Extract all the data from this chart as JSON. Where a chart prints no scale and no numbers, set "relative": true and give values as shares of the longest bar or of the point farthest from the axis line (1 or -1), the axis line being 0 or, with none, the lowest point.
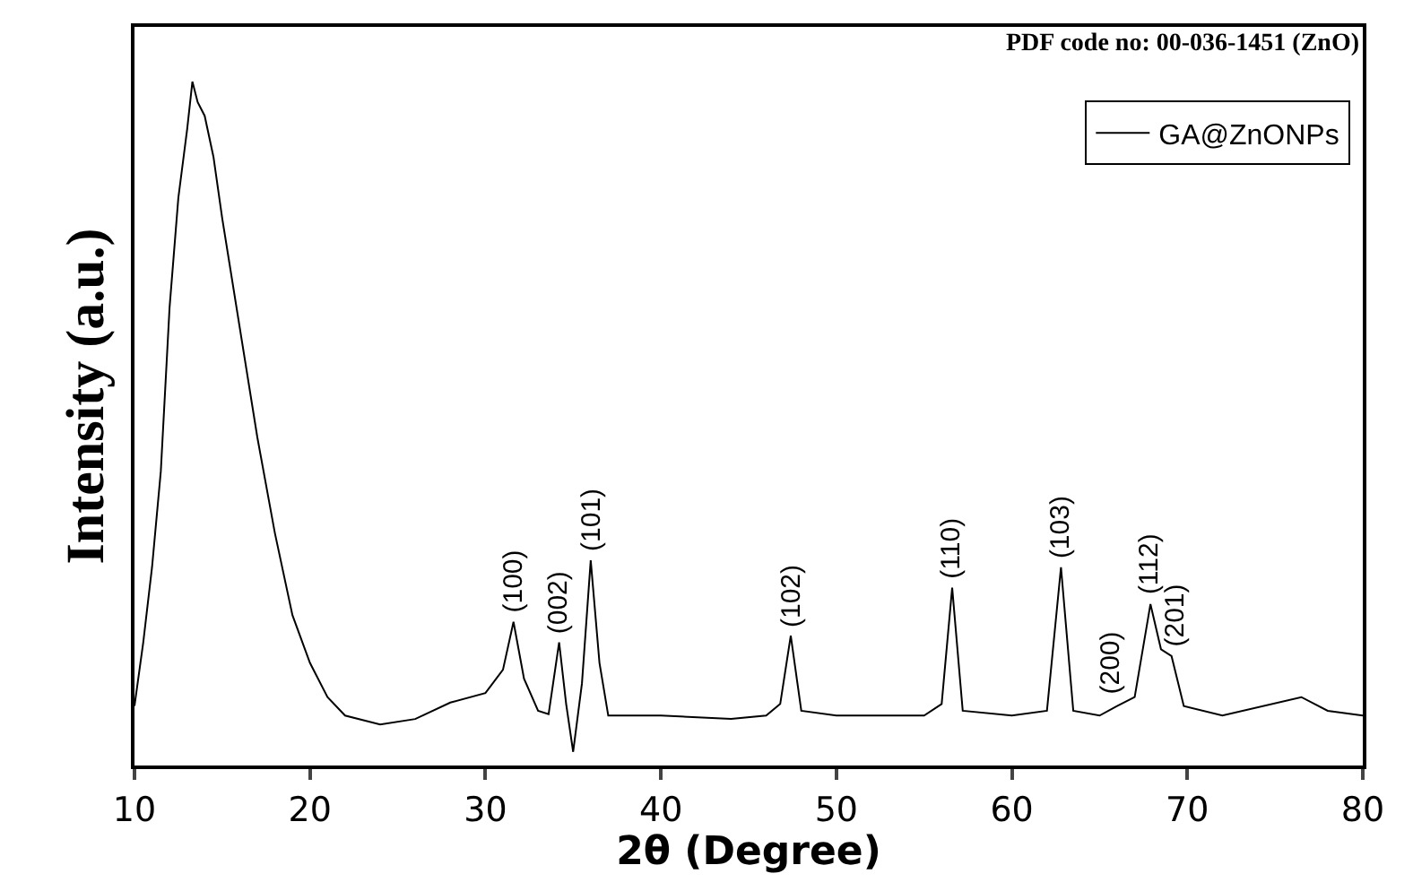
{
  "chart_data": {
    "type": "line",
    "relative": true,
    "xlabel": "2θ (Degree)",
    "ylabel": "Intensity (a.u.)",
    "xlim": [
      10,
      80
    ],
    "xticks": [
      10,
      20,
      30,
      40,
      50,
      60,
      70,
      80
    ],
    "legend": "top right",
    "marker": "none",
    "line_style": "solid",
    "series": [
      {
        "name": "GA@ZnONPs",
        "color": "#000000",
        "x": [
          10,
          10.5,
          11,
          11.5,
          12,
          12.5,
          13,
          13.3,
          13.6,
          14,
          14.5,
          15,
          16,
          17,
          18,
          19,
          20,
          21,
          22,
          24,
          26,
          28,
          30,
          31,
          31.6,
          32.2,
          33,
          33.6,
          34.2,
          34.6,
          35,
          35.5,
          36,
          36.5,
          37,
          40,
          44,
          46,
          46.8,
          47.4,
          48,
          50,
          55,
          56,
          56.6,
          57.2,
          60,
          62,
          62.8,
          63.5,
          65,
          66,
          67,
          67.9,
          68.5,
          69.1,
          69.8,
          72,
          76.5,
          78,
          80
        ],
        "values": [
          0.087,
          0.18,
          0.29,
          0.43,
          0.67,
          0.83,
          0.93,
          1.0,
          0.97,
          0.95,
          0.89,
          0.8,
          0.64,
          0.48,
          0.34,
          0.22,
          0.15,
          0.1,
          0.073,
          0.06,
          0.068,
          0.092,
          0.106,
          0.14,
          0.21,
          0.127,
          0.08,
          0.075,
          0.18,
          0.09,
          0.02,
          0.12,
          0.3,
          0.15,
          0.073,
          0.073,
          0.068,
          0.073,
          0.09,
          0.19,
          0.08,
          0.073,
          0.073,
          0.09,
          0.26,
          0.08,
          0.073,
          0.08,
          0.29,
          0.08,
          0.073,
          0.087,
          0.1,
          0.236,
          0.17,
          0.16,
          0.087,
          0.073,
          0.1,
          0.08,
          0.073
        ]
      }
    ],
    "annotations": [
      "PDF code no: 00-036-1451 (ZnO)",
      {
        "text": "(100)",
        "x": 31.6,
        "y": 0.21
      },
      {
        "text": "(002)",
        "x": 34.2,
        "y": 0.18
      },
      {
        "text": "(101)",
        "x": 36,
        "y": 0.3
      },
      {
        "text": "(102)",
        "x": 47.4,
        "y": 0.19
      },
      {
        "text": "(110)",
        "x": 56.6,
        "y": 0.26
      },
      {
        "text": "(103)",
        "x": 62.8,
        "y": 0.29
      },
      {
        "text": "(200)",
        "x": 65.6,
        "y": 0.09
      },
      {
        "text": "(112)",
        "x": 67.9,
        "y": 0.236
      },
      {
        "text": "(201)",
        "x": 69.3,
        "y": 0.16
      }
    ]
  }
}
